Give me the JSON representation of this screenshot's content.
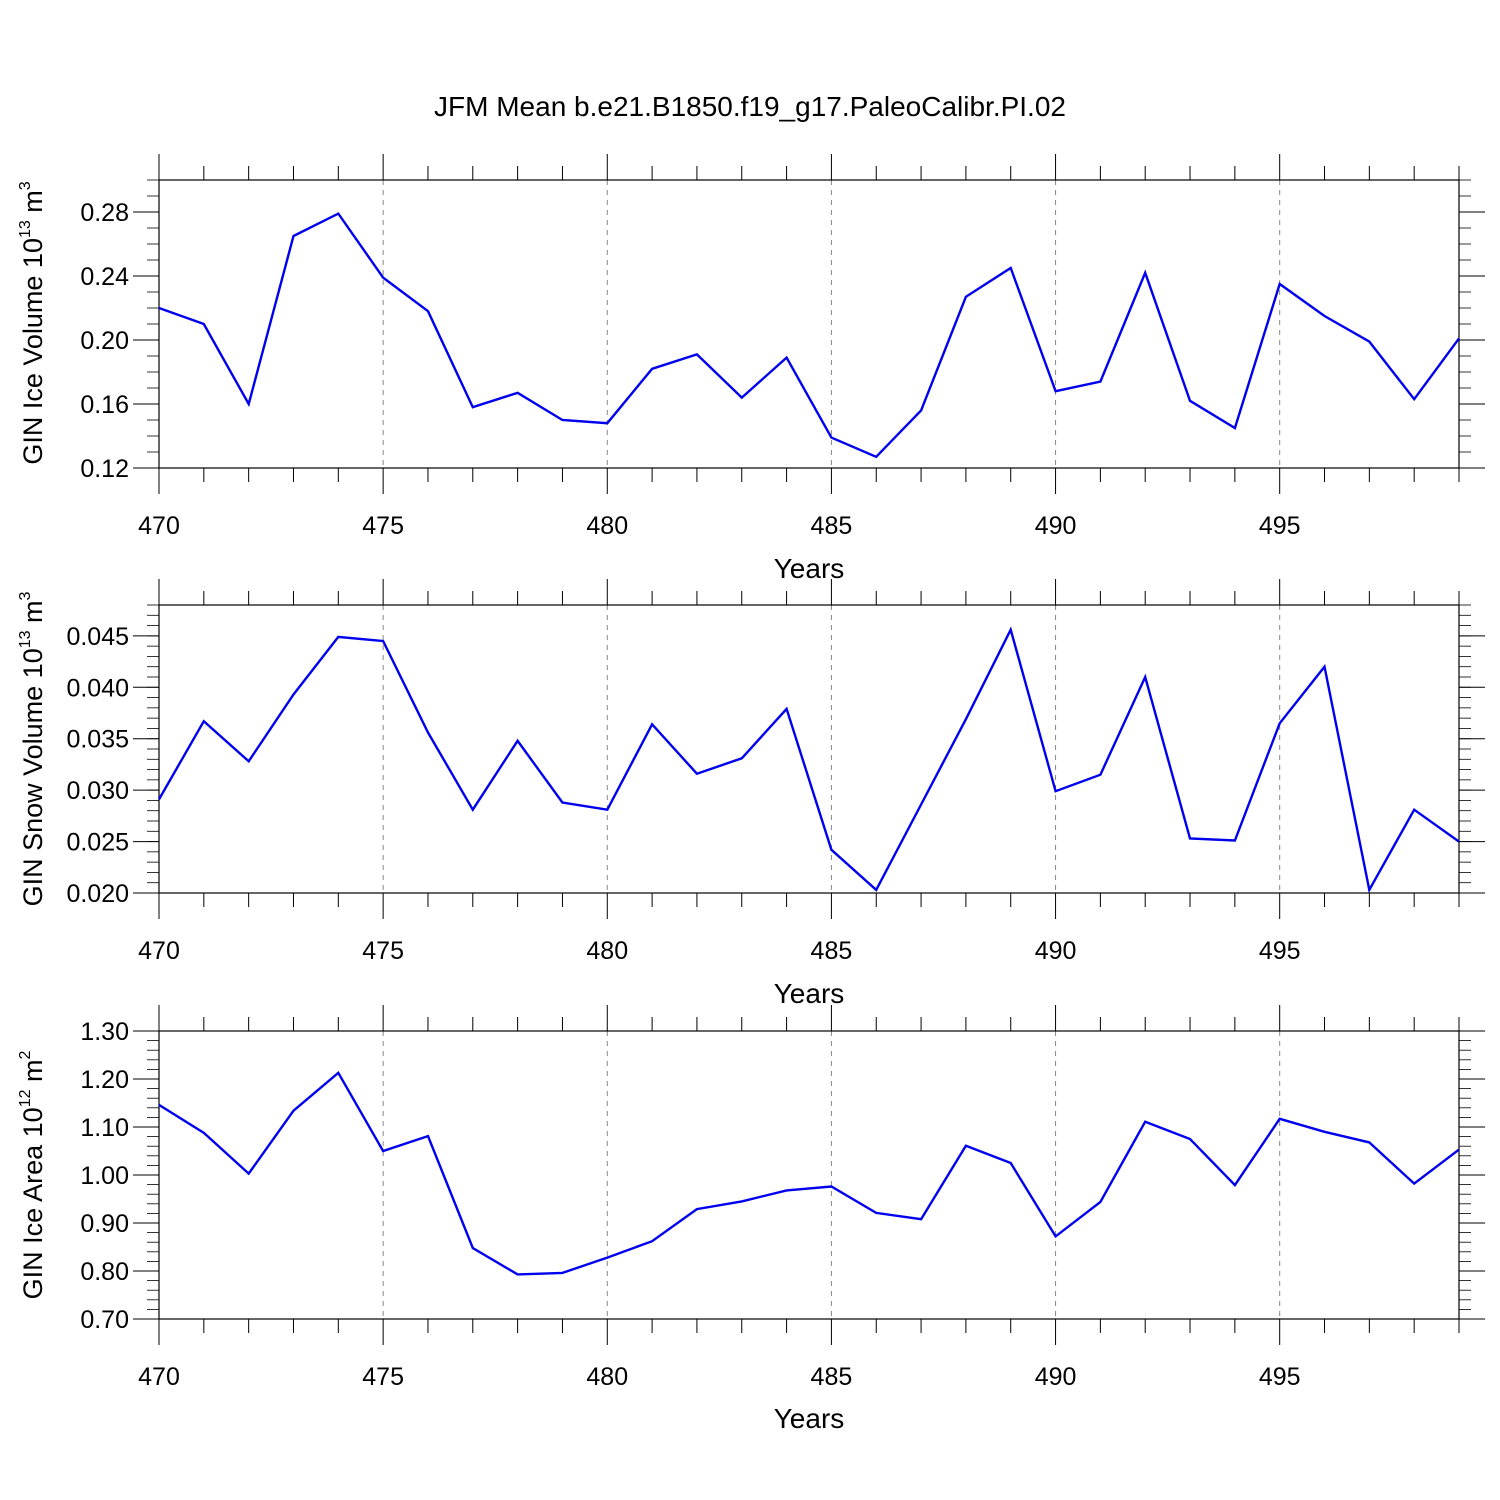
{
  "title": "JFM Mean b.e21.B1850.f19_g17.PaleoCalibr.PI.02",
  "line_color": "#0000ee",
  "grid_color": "#888888",
  "chart_data": [
    {
      "type": "line",
      "ylabel_main": "GIN Ice Volume 10",
      "ylabel_exp": "13",
      "ylabel_unit": " m",
      "ylabel_unit_exp": "3",
      "xlabel": "Years",
      "xlim": [
        470,
        499
      ],
      "ylim": [
        0.12,
        0.3
      ],
      "x_ticks": [
        "470",
        "475",
        "480",
        "485",
        "490",
        "495"
      ],
      "y_ticks": [
        "0.12",
        "0.16",
        "0.20",
        "0.24",
        "0.28"
      ],
      "x": [
        470,
        471,
        472,
        473,
        474,
        475,
        476,
        477,
        478,
        479,
        480,
        481,
        482,
        483,
        484,
        485,
        486,
        487,
        488,
        489,
        490,
        491,
        492,
        493,
        494,
        495,
        496,
        497,
        498,
        499
      ],
      "values": [
        0.22,
        0.21,
        0.16,
        0.265,
        0.279,
        0.239,
        0.218,
        0.158,
        0.167,
        0.15,
        0.148,
        0.182,
        0.191,
        0.164,
        0.189,
        0.139,
        0.127,
        0.156,
        0.227,
        0.245,
        0.168,
        0.174,
        0.242,
        0.162,
        0.145,
        0.235,
        0.215,
        0.199,
        0.163,
        0.201
      ]
    },
    {
      "type": "line",
      "ylabel_main": "GIN Snow Volume 10",
      "ylabel_exp": "13",
      "ylabel_unit": " m",
      "ylabel_unit_exp": "3",
      "xlabel": "Years",
      "xlim": [
        470,
        499
      ],
      "ylim": [
        0.02,
        0.048
      ],
      "x_ticks": [
        "470",
        "475",
        "480",
        "485",
        "490",
        "495"
      ],
      "y_ticks": [
        "0.020",
        "0.025",
        "0.030",
        "0.035",
        "0.040",
        "0.045"
      ],
      "x": [
        470,
        471,
        472,
        473,
        474,
        475,
        476,
        477,
        478,
        479,
        480,
        481,
        482,
        483,
        484,
        485,
        486,
        487,
        488,
        489,
        490,
        491,
        492,
        493,
        494,
        495,
        496,
        497,
        498,
        499
      ],
      "values": [
        0.0291,
        0.0367,
        0.0328,
        0.0393,
        0.0449,
        0.0445,
        0.0356,
        0.0281,
        0.0348,
        0.0288,
        0.0281,
        0.0364,
        0.0316,
        0.0331,
        0.0379,
        0.0242,
        0.0203,
        0.0286,
        0.0369,
        0.0456,
        0.0299,
        0.0315,
        0.041,
        0.0253,
        0.0251,
        0.0365,
        0.042,
        0.0203,
        0.0281,
        0.025
      ]
    },
    {
      "type": "line",
      "ylabel_main": "GIN Ice Area 10",
      "ylabel_exp": "12",
      "ylabel_unit": " m",
      "ylabel_unit_exp": "2",
      "xlabel": "Years",
      "xlim": [
        470,
        499
      ],
      "ylim": [
        0.7,
        1.3
      ],
      "x_ticks": [
        "470",
        "475",
        "480",
        "485",
        "490",
        "495"
      ],
      "y_ticks": [
        "0.70",
        "0.80",
        "0.90",
        "1.00",
        "1.10",
        "1.20",
        "1.30"
      ],
      "x": [
        470,
        471,
        472,
        473,
        474,
        475,
        476,
        477,
        478,
        479,
        480,
        481,
        482,
        483,
        484,
        485,
        486,
        487,
        488,
        489,
        490,
        491,
        492,
        493,
        494,
        495,
        496,
        497,
        498,
        499
      ],
      "values": [
        1.146,
        1.088,
        1.003,
        1.134,
        1.213,
        1.05,
        1.081,
        0.848,
        0.793,
        0.796,
        0.828,
        0.862,
        0.929,
        0.945,
        0.968,
        0.976,
        0.921,
        0.908,
        1.061,
        1.025,
        0.872,
        0.944,
        1.111,
        1.075,
        0.979,
        1.117,
        1.09,
        1.068,
        0.982,
        1.053
      ]
    }
  ]
}
